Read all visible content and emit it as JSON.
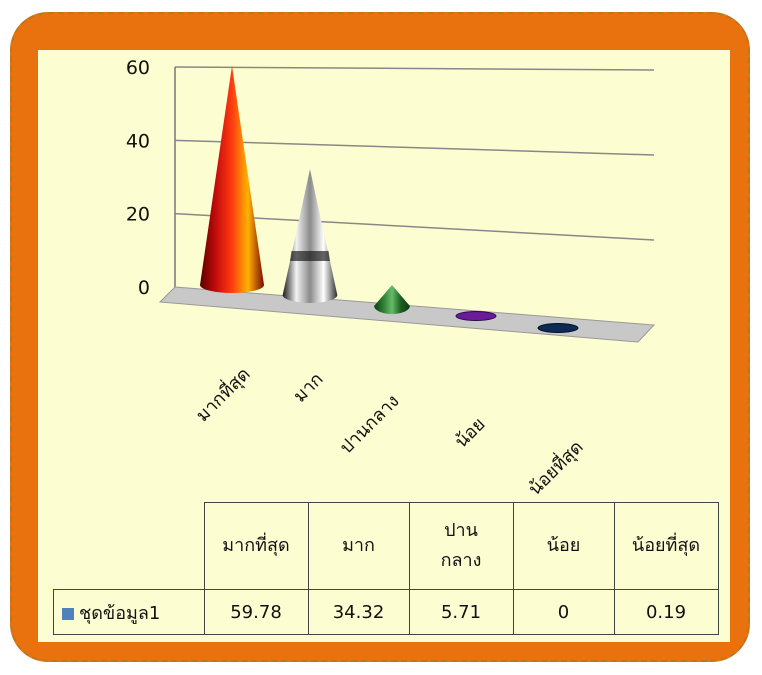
{
  "chart_data": {
    "type": "bar",
    "categories": [
      "มากที่สุด",
      "มาก",
      "ปานกลาง",
      "น้อย",
      "น้อยที่สุด"
    ],
    "series": [
      {
        "name": "ชุดข้อมูล1",
        "values": [
          59.78,
          34.32,
          5.71,
          0,
          0.19
        ]
      }
    ],
    "ylim": [
      0,
      60
    ],
    "yticks": [
      "0",
      "20",
      "40",
      "60"
    ],
    "grid": true,
    "legend": "table",
    "table": {
      "headers": [
        "มากที่สุด",
        "มาก",
        "ปาน\nกลาง",
        "น้อย",
        "น้อยที่สุด"
      ],
      "values": [
        "59.78",
        "34.32",
        "5.71",
        "0",
        "0.19"
      ]
    }
  },
  "colors": {
    "frame": "#e9720f",
    "panel": "#fdfdd2",
    "legend_marker": "#4f81bd",
    "cones": [
      "#e02010",
      "#b0b0b0",
      "#2e7d32",
      "#6a1b9a",
      "#0d2a52"
    ]
  }
}
